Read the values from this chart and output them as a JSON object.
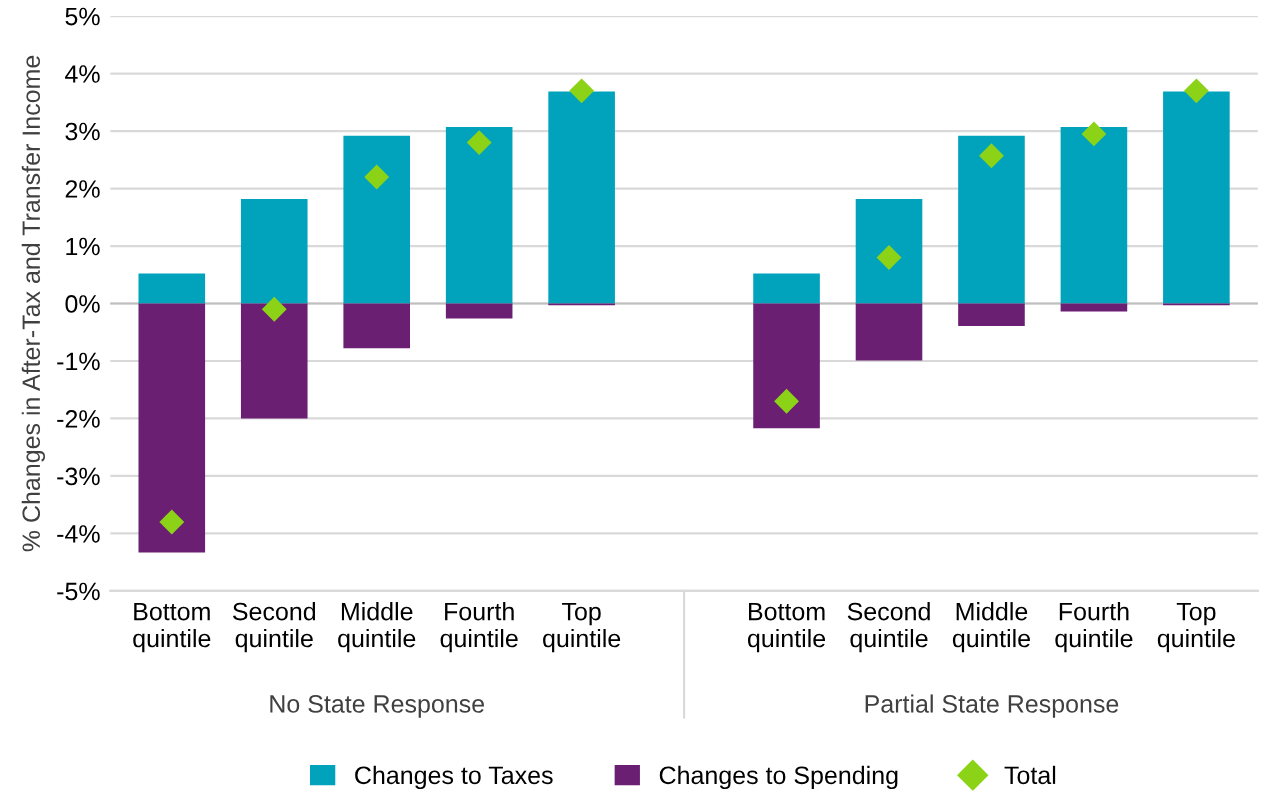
{
  "chart_data": {
    "type": "bar",
    "stacked": true,
    "ylabel": "% Changes in After-Tax and Transfer Income",
    "categories": [
      "Bottom\nquintile",
      "Second\nquintile",
      "Middle\nquintile",
      "Fourth\nquintile",
      "Top\nquintile",
      null,
      "Bottom\nquintile",
      "Second\nquintile",
      "Middle\nquintile",
      "Fourth\nquintile",
      "Top\nquintile"
    ],
    "series": [
      {
        "name": "Changes to Taxes",
        "color": "#00a3bb",
        "values": [
          0.52,
          1.82,
          2.92,
          3.07,
          3.69,
          null,
          0.52,
          1.82,
          2.92,
          3.07,
          3.69
        ]
      },
      {
        "name": "Changes to Spending",
        "color": "#6a1f72",
        "values": [
          -4.33,
          -2.0,
          -0.78,
          -0.26,
          -0.03,
          null,
          -2.17,
          -0.99,
          -0.39,
          -0.14,
          -0.03
        ]
      },
      {
        "name": "Total",
        "type": "scatter",
        "marker": "diamond",
        "color": "#8cd317",
        "values": [
          -3.8,
          -0.1,
          2.2,
          2.8,
          3.7,
          null,
          -1.7,
          0.8,
          2.57,
          2.95,
          3.7
        ]
      }
    ],
    "annotations": [
      "No State Response",
      "Partial State Response"
    ],
    "ylim": [
      -5,
      5
    ],
    "yticks": [
      {
        "value": -5,
        "label": "-5%"
      },
      {
        "value": -4,
        "label": "-4%"
      },
      {
        "value": -3,
        "label": "-3%"
      },
      {
        "value": -2,
        "label": "-2%"
      },
      {
        "value": -1,
        "label": "-1%"
      },
      {
        "value": 0,
        "label": "0%"
      },
      {
        "value": 1,
        "label": "1%"
      },
      {
        "value": 2,
        "label": "2%"
      },
      {
        "value": 3,
        "label": "3%"
      },
      {
        "value": 4,
        "label": "4%"
      },
      {
        "value": 5,
        "label": "5%"
      }
    ],
    "grid": "y",
    "legend": "bottom"
  }
}
